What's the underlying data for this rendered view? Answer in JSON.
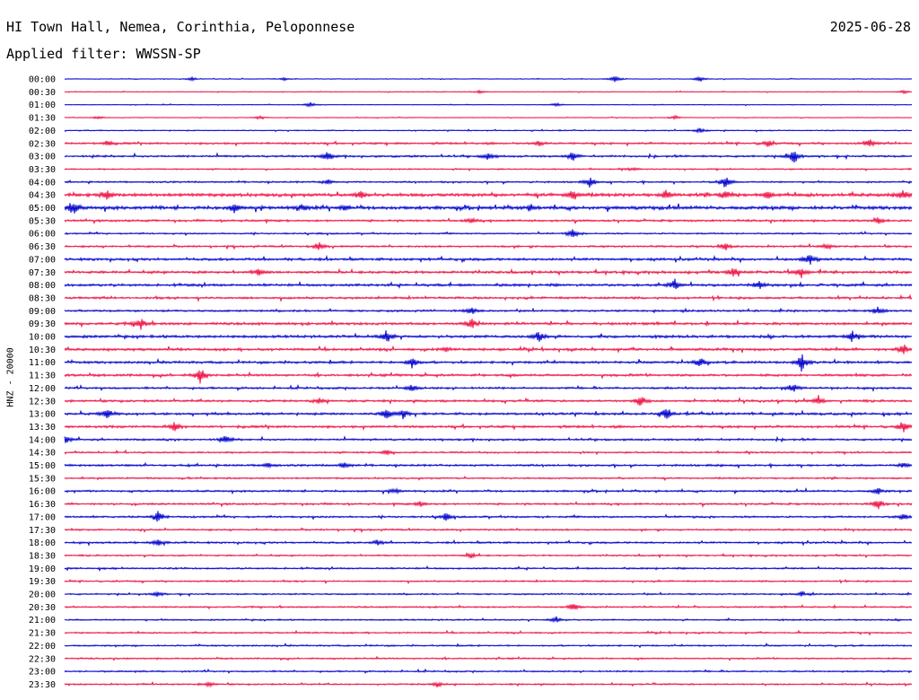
{
  "header": {
    "station": "HI Town Hall, Nemea, Corinthia, Peloponnese",
    "date": "2025-06-28",
    "filter": "Applied filter: WWSSN-SP"
  },
  "chart_data": {
    "type": "line",
    "ylabel": "HNZ - 20000",
    "colors": {
      "blue": "#0000cc",
      "red": "#ee1144"
    },
    "rows": [
      {
        "label": "00:00",
        "color": "#0000cc",
        "noise": 0.4,
        "events": [
          [
            0.15,
            2
          ],
          [
            0.26,
            2
          ],
          [
            0.65,
            4
          ],
          [
            0.75,
            3
          ]
        ]
      },
      {
        "label": "00:30",
        "color": "#ee1144",
        "noise": 0.4,
        "events": [
          [
            0.49,
            2
          ],
          [
            0.99,
            2
          ]
        ]
      },
      {
        "label": "01:00",
        "color": "#0000cc",
        "noise": 0.4,
        "events": [
          [
            0.29,
            3
          ],
          [
            0.58,
            2
          ]
        ]
      },
      {
        "label": "01:30",
        "color": "#ee1144",
        "noise": 0.4,
        "events": [
          [
            0.04,
            2
          ],
          [
            0.23,
            2
          ],
          [
            0.72,
            2
          ]
        ]
      },
      {
        "label": "02:00",
        "color": "#0000cc",
        "noise": 0.6,
        "events": [
          [
            0.75,
            3
          ]
        ]
      },
      {
        "label": "02:30",
        "color": "#ee1144",
        "noise": 1.2,
        "events": [
          [
            0.05,
            3
          ],
          [
            0.56,
            3
          ],
          [
            0.83,
            4
          ],
          [
            0.95,
            5
          ]
        ]
      },
      {
        "label": "03:00",
        "color": "#0000cc",
        "noise": 1.2,
        "events": [
          [
            0.31,
            6
          ],
          [
            0.5,
            4
          ],
          [
            0.6,
            5
          ],
          [
            0.86,
            9
          ]
        ]
      },
      {
        "label": "03:30",
        "color": "#ee1144",
        "noise": 0.8,
        "events": [
          [
            0.67,
            2
          ]
        ]
      },
      {
        "label": "04:00",
        "color": "#0000cc",
        "noise": 1.0,
        "events": [
          [
            0.31,
            3
          ],
          [
            0.62,
            6
          ],
          [
            0.78,
            8
          ]
        ]
      },
      {
        "label": "04:30",
        "color": "#ee1144",
        "noise": 2.0,
        "events": [
          [
            0.05,
            5
          ],
          [
            0.35,
            5
          ],
          [
            0.6,
            7
          ],
          [
            0.71,
            5
          ],
          [
            0.78,
            6
          ],
          [
            0.83,
            4
          ],
          [
            0.99,
            5
          ]
        ]
      },
      {
        "label": "05:00",
        "color": "#0000cc",
        "noise": 2.0,
        "events": [
          [
            0.01,
            8
          ],
          [
            0.2,
            5
          ],
          [
            0.28,
            4
          ],
          [
            0.33,
            3
          ],
          [
            0.55,
            3
          ]
        ]
      },
      {
        "label": "05:30",
        "color": "#ee1144",
        "noise": 1.2,
        "events": [
          [
            0.48,
            3
          ],
          [
            0.96,
            3
          ]
        ]
      },
      {
        "label": "06:00",
        "color": "#0000cc",
        "noise": 0.9,
        "events": [
          [
            0.6,
            5
          ]
        ]
      },
      {
        "label": "06:30",
        "color": "#ee1144",
        "noise": 1.1,
        "events": [
          [
            0.3,
            5
          ],
          [
            0.78,
            4
          ],
          [
            0.9,
            3
          ]
        ]
      },
      {
        "label": "07:00",
        "color": "#0000cc",
        "noise": 1.5,
        "events": [
          [
            0.88,
            6
          ]
        ]
      },
      {
        "label": "07:30",
        "color": "#ee1144",
        "noise": 1.5,
        "events": [
          [
            0.23,
            4
          ],
          [
            0.79,
            6
          ],
          [
            0.87,
            6
          ]
        ]
      },
      {
        "label": "08:00",
        "color": "#0000cc",
        "noise": 1.5,
        "events": [
          [
            0.72,
            6
          ],
          [
            0.82,
            5
          ]
        ]
      },
      {
        "label": "08:30",
        "color": "#ee1144",
        "noise": 1.3,
        "events": []
      },
      {
        "label": "09:00",
        "color": "#0000cc",
        "noise": 1.2,
        "events": [
          [
            0.48,
            4
          ],
          [
            0.96,
            5
          ]
        ]
      },
      {
        "label": "09:30",
        "color": "#ee1144",
        "noise": 1.5,
        "events": [
          [
            0.09,
            7
          ],
          [
            0.48,
            6
          ]
        ]
      },
      {
        "label": "10:00",
        "color": "#0000cc",
        "noise": 1.6,
        "events": [
          [
            0.38,
            8
          ],
          [
            0.56,
            6
          ],
          [
            0.93,
            6
          ]
        ]
      },
      {
        "label": "10:30",
        "color": "#ee1144",
        "noise": 1.5,
        "events": [
          [
            0.45,
            3
          ],
          [
            0.99,
            7
          ]
        ]
      },
      {
        "label": "11:00",
        "color": "#0000cc",
        "noise": 1.4,
        "events": [
          [
            0.41,
            6
          ],
          [
            0.75,
            6
          ],
          [
            0.87,
            10
          ]
        ]
      },
      {
        "label": "11:30",
        "color": "#ee1144",
        "noise": 1.4,
        "events": [
          [
            0.16,
            9
          ]
        ]
      },
      {
        "label": "12:00",
        "color": "#0000cc",
        "noise": 1.2,
        "events": [
          [
            0.41,
            4
          ],
          [
            0.86,
            5
          ]
        ]
      },
      {
        "label": "12:30",
        "color": "#ee1144",
        "noise": 1.3,
        "events": [
          [
            0.3,
            3
          ],
          [
            0.68,
            7
          ],
          [
            0.89,
            6
          ]
        ]
      },
      {
        "label": "13:00",
        "color": "#0000cc",
        "noise": 1.4,
        "events": [
          [
            0.05,
            7
          ],
          [
            0.38,
            7
          ],
          [
            0.4,
            5
          ],
          [
            0.71,
            7
          ]
        ]
      },
      {
        "label": "13:30",
        "color": "#ee1144",
        "noise": 1.4,
        "events": [
          [
            0.13,
            6
          ],
          [
            0.99,
            6
          ]
        ]
      },
      {
        "label": "14:00",
        "color": "#0000cc",
        "noise": 1.2,
        "events": [
          [
            0.0,
            5
          ],
          [
            0.19,
            5
          ]
        ]
      },
      {
        "label": "14:30",
        "color": "#ee1144",
        "noise": 1.0,
        "events": [
          [
            0.38,
            3
          ]
        ]
      },
      {
        "label": "15:00",
        "color": "#0000cc",
        "noise": 1.2,
        "events": [
          [
            0.24,
            3
          ],
          [
            0.33,
            3
          ],
          [
            0.99,
            3
          ]
        ]
      },
      {
        "label": "15:30",
        "color": "#ee1144",
        "noise": 1.0,
        "events": []
      },
      {
        "label": "16:00",
        "color": "#0000cc",
        "noise": 1.1,
        "events": [
          [
            0.39,
            3
          ],
          [
            0.96,
            4
          ]
        ]
      },
      {
        "label": "16:30",
        "color": "#ee1144",
        "noise": 1.1,
        "events": [
          [
            0.42,
            3
          ],
          [
            0.96,
            6
          ]
        ]
      },
      {
        "label": "17:00",
        "color": "#0000cc",
        "noise": 1.1,
        "events": [
          [
            0.11,
            6
          ],
          [
            0.45,
            4
          ],
          [
            0.99,
            4
          ]
        ]
      },
      {
        "label": "17:30",
        "color": "#ee1144",
        "noise": 1.0,
        "events": []
      },
      {
        "label": "18:00",
        "color": "#0000cc",
        "noise": 1.1,
        "events": [
          [
            0.11,
            4
          ],
          [
            0.37,
            3
          ]
        ]
      },
      {
        "label": "18:30",
        "color": "#ee1144",
        "noise": 0.9,
        "events": [
          [
            0.48,
            3
          ]
        ]
      },
      {
        "label": "19:00",
        "color": "#0000cc",
        "noise": 1.0,
        "events": []
      },
      {
        "label": "19:30",
        "color": "#ee1144",
        "noise": 0.9,
        "events": []
      },
      {
        "label": "20:00",
        "color": "#0000cc",
        "noise": 0.9,
        "events": [
          [
            0.11,
            3
          ],
          [
            0.87,
            3
          ]
        ]
      },
      {
        "label": "20:30",
        "color": "#ee1144",
        "noise": 0.9,
        "events": [
          [
            0.6,
            5
          ]
        ]
      },
      {
        "label": "21:00",
        "color": "#0000cc",
        "noise": 0.9,
        "events": [
          [
            0.58,
            4
          ]
        ]
      },
      {
        "label": "21:30",
        "color": "#ee1144",
        "noise": 0.9,
        "events": []
      },
      {
        "label": "22:00",
        "color": "#0000cc",
        "noise": 0.9,
        "events": []
      },
      {
        "label": "22:30",
        "color": "#ee1144",
        "noise": 0.9,
        "events": []
      },
      {
        "label": "23:00",
        "color": "#0000cc",
        "noise": 0.9,
        "events": []
      },
      {
        "label": "23:30",
        "color": "#ee1144",
        "noise": 0.9,
        "events": [
          [
            0.17,
            3
          ],
          [
            0.44,
            3
          ]
        ]
      }
    ]
  }
}
